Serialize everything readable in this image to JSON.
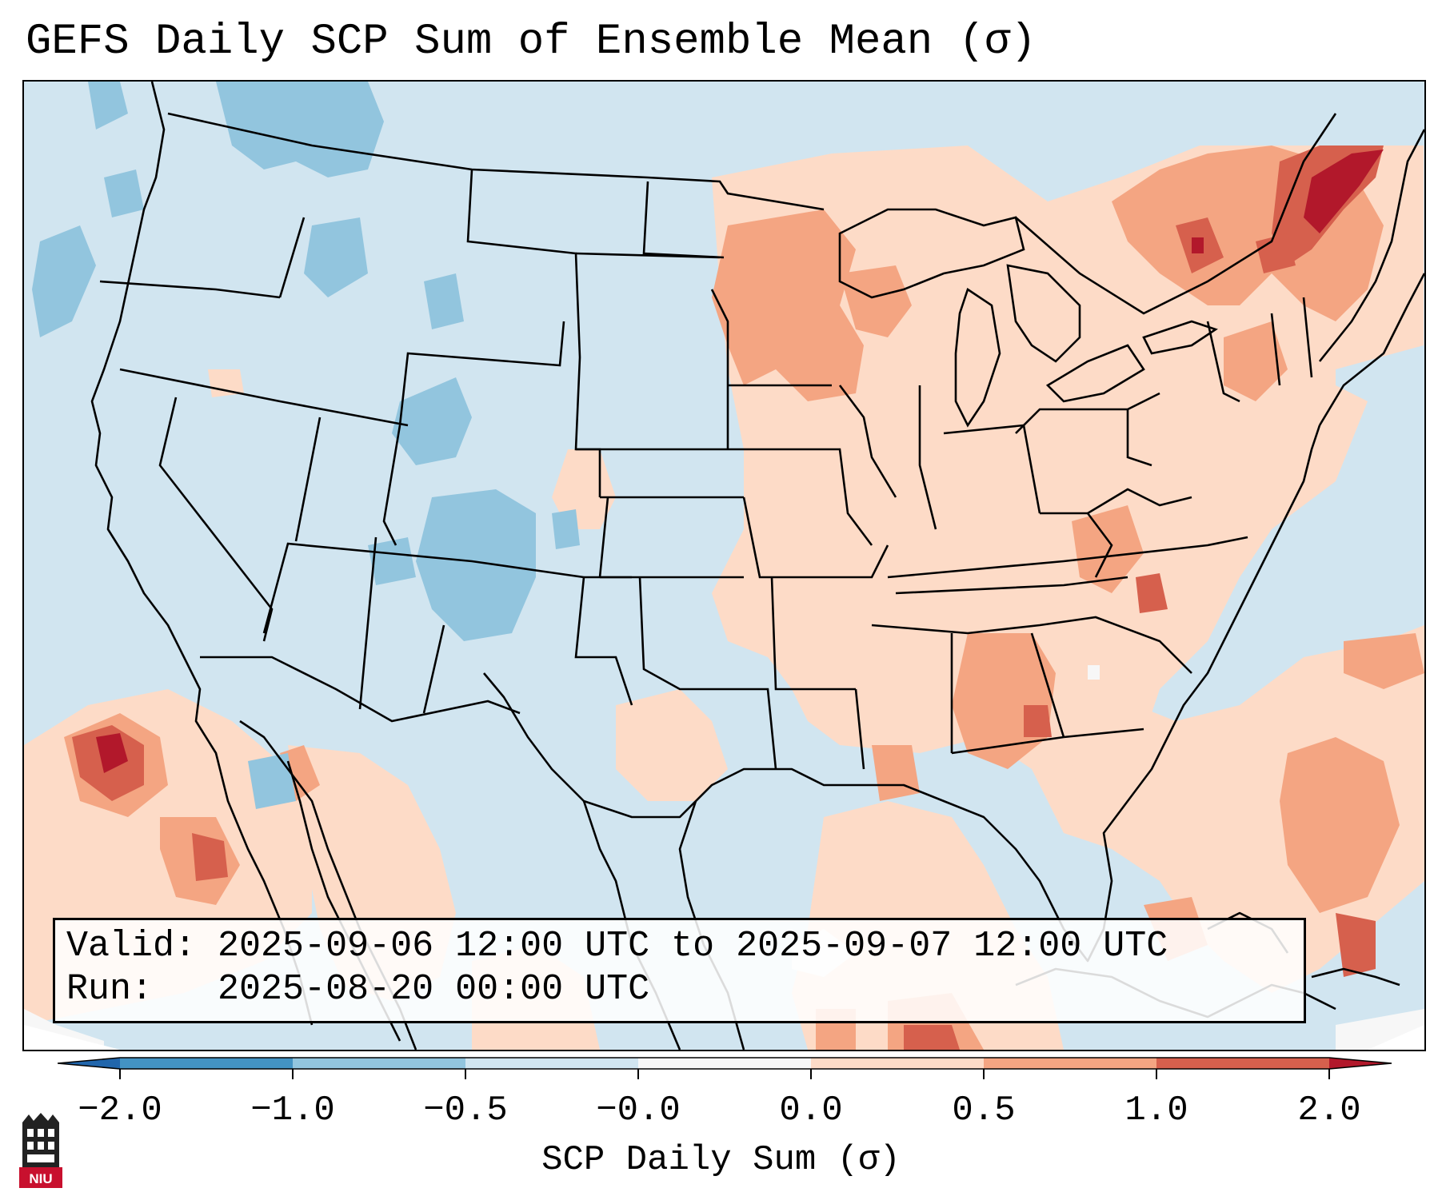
{
  "title": "GEFS Daily SCP Sum of Ensemble Mean (σ)",
  "info": {
    "valid_label": "Valid:",
    "valid_value": "2025-09-06 12:00 UTC to 2025-09-07 12:00 UTC",
    "run_label": "Run:",
    "run_value": "2025-08-20 00:00 UTC"
  },
  "colorbar": {
    "label": "SCP Daily Sum (σ)",
    "ticks": [
      "−2.0",
      "−1.0",
      "−0.5",
      "−0.0",
      "0.0",
      "0.5",
      "1.0",
      "2.0"
    ],
    "colors": {
      "below": "#2166ac",
      "n2_n1": "#4393c3",
      "n1_n05": "#92c5de",
      "n05_0": "#d1e5f0",
      "zero_band": "#f7f7f7",
      "p0_p05": "#fddbc7",
      "p05_p1": "#f4a582",
      "p1_p2": "#d6604d",
      "above": "#b2182b"
    }
  },
  "logo": {
    "text": "NIU",
    "color": "#c8102e"
  },
  "map": {
    "field": "GEFS daily SCP sum anomaly (σ)",
    "region": "Continental United States"
  }
}
